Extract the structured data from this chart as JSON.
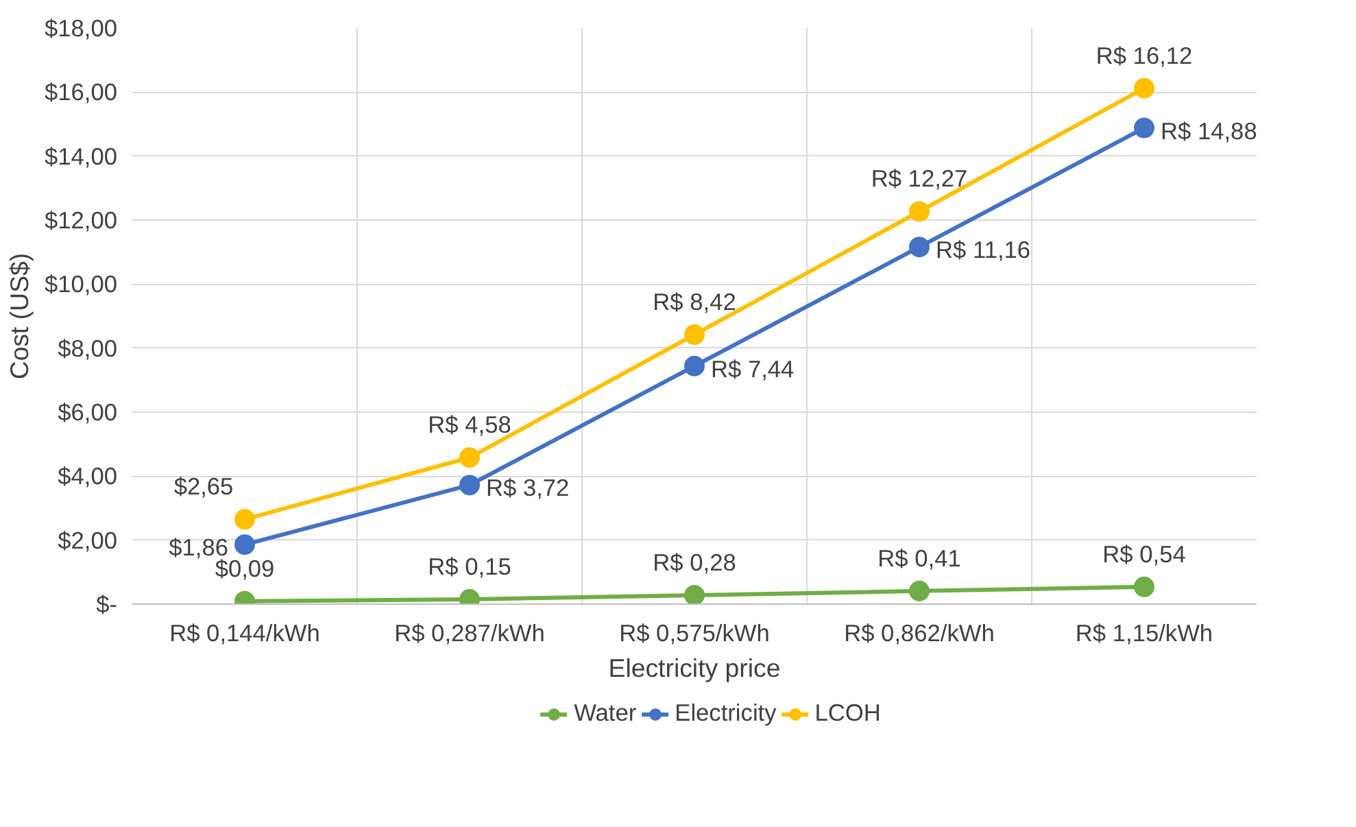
{
  "chart_data": {
    "type": "line",
    "xlabel": "Electricity price",
    "ylabel": "Cost (US$)",
    "categories": [
      "R$ 0,144/kWh",
      "R$ 0,287/kWh",
      "R$ 0,575/kWh",
      "R$ 0,862/kWh",
      "R$ 1,15/kWh"
    ],
    "series": [
      {
        "name": "Water",
        "color": "#70ad47",
        "values": [
          0.09,
          0.15,
          0.28,
          0.41,
          0.54
        ],
        "value_labels": [
          "$0,09",
          "R$ 0,15",
          "R$ 0,28",
          "R$ 0,41",
          "R$ 0,54"
        ]
      },
      {
        "name": "Electricity",
        "color": "#4472c4",
        "values": [
          1.86,
          3.72,
          7.44,
          11.16,
          14.88
        ],
        "value_labels": [
          "$1,86",
          "R$ 3,72",
          "R$ 7,44",
          "R$ 11,16",
          "R$ 14,88"
        ]
      },
      {
        "name": "LCOH",
        "color": "#ffc000",
        "values": [
          2.65,
          4.58,
          8.42,
          12.27,
          16.12
        ],
        "value_labels": [
          "$2,65",
          "R$ 4,58",
          "R$ 8,42",
          "R$ 12,27",
          "R$ 16,12"
        ]
      }
    ],
    "ylim": [
      0,
      18
    ],
    "yticks": [
      {
        "value": 0,
        "label": "$-"
      },
      {
        "value": 2,
        "label": "$2,00"
      },
      {
        "value": 4,
        "label": "$4,00"
      },
      {
        "value": 6,
        "label": "$6,00"
      },
      {
        "value": 8,
        "label": "$8,00"
      },
      {
        "value": 10,
        "label": "$10,00"
      },
      {
        "value": 12,
        "label": "$12,00"
      },
      {
        "value": 14,
        "label": "$14,00"
      },
      {
        "value": 16,
        "label": "$16,00"
      },
      {
        "value": 18,
        "label": "$18,00"
      }
    ],
    "grid": true,
    "legend": "bottom",
    "marker": "circle",
    "line_style": "solid"
  }
}
